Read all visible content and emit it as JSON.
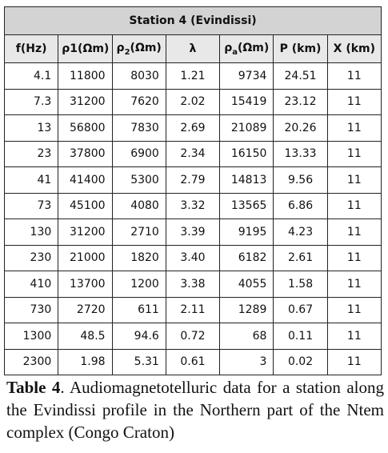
{
  "table": {
    "title": "Station 4 (Evindissi)",
    "headers": [
      [
        "f(Hz)"
      ],
      [
        "ρ1(Ωm)"
      ],
      [
        "ρ",
        "2",
        "(Ωm)"
      ],
      [
        "λ"
      ],
      [
        "ρ",
        "a",
        "(Ωm)"
      ],
      [
        "P (km)"
      ],
      [
        "X (km)"
      ]
    ],
    "rows": [
      [
        "4.1",
        "11800",
        "8030",
        "1.21",
        "9734",
        "24.51",
        "11"
      ],
      [
        "7.3",
        "31200",
        "7620",
        "2.02",
        "15419",
        "23.12",
        "11"
      ],
      [
        "13",
        "56800",
        "7830",
        "2.69",
        "21089",
        "20.26",
        "11"
      ],
      [
        "23",
        "37800",
        "6900",
        "2.34",
        "16150",
        "13.33",
        "11"
      ],
      [
        "41",
        "41400",
        "5300",
        "2.79",
        "14813",
        "9.56",
        "11"
      ],
      [
        "73",
        "45100",
        "4080",
        "3.32",
        "13565",
        "6.86",
        "11"
      ],
      [
        "130",
        "31200",
        "2710",
        "3.39",
        "9195",
        "4.23",
        "11"
      ],
      [
        "230",
        "21000",
        "1820",
        "3.40",
        "6182",
        "2.61",
        "11"
      ],
      [
        "410",
        "13700",
        "1200",
        "3.38",
        "4055",
        "1.58",
        "11"
      ],
      [
        "730",
        "2720",
        "611",
        "2.11",
        "1289",
        "0.67",
        "11"
      ],
      [
        "1300",
        "48.5",
        "94.6",
        "0.72",
        "68",
        "0.11",
        "11"
      ],
      [
        "2300",
        "1.98",
        "5.31",
        "0.61",
        "3",
        "0.02",
        "11"
      ]
    ]
  },
  "caption": {
    "label": "Table 4",
    "text": ". Audiomagnetotelluric data for a station along the Evindissi profile in the Northern part of the Ntem complex (Congo Craton)"
  }
}
